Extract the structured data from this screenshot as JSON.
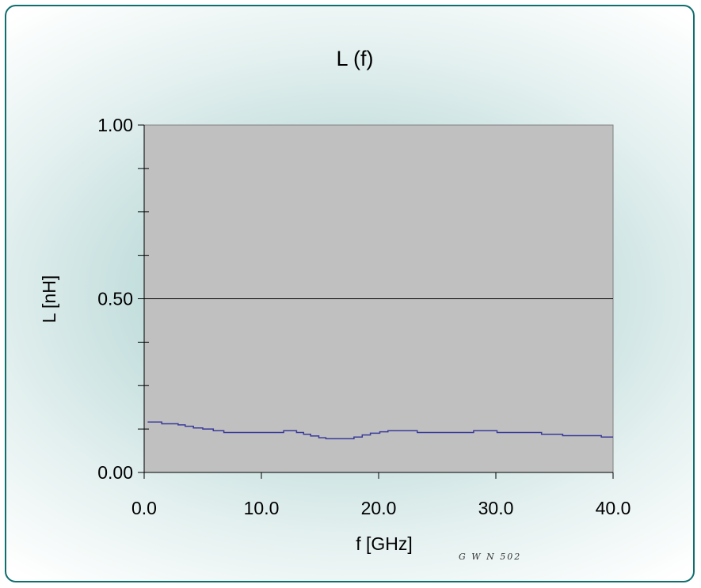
{
  "chart_data": {
    "type": "line",
    "title": "L (f)",
    "xlabel": "f [GHz]",
    "ylabel": "L [nH]",
    "xlim": [
      0.0,
      40.0
    ],
    "ylim": [
      0.0,
      1.0
    ],
    "x_ticks": [
      "0.0",
      "10.0",
      "20.0",
      "30.0",
      "40.0"
    ],
    "y_ticks": [
      "0.00",
      "0.50",
      "1.00"
    ],
    "grid": "horizontal major at 0.50",
    "legend": "none",
    "plot_background": "#c0c0c0",
    "line_color": "#3a3a9a",
    "series": [
      {
        "x": [
          0.3,
          1.5,
          2.9,
          3.5,
          4.2,
          5.0,
          5.9,
          6.8,
          9.0,
          11.2,
          11.9,
          13.0,
          13.6,
          14.2,
          14.9,
          15.5,
          17.2,
          17.9,
          18.6,
          19.3,
          20.1,
          20.8,
          23.3,
          25.0,
          27.0,
          28.1,
          29.0,
          30.1,
          31.8,
          33.9,
          35.7,
          38.2,
          39.0,
          40.0
        ],
        "y": [
          0.145,
          0.14,
          0.137,
          0.133,
          0.128,
          0.125,
          0.12,
          0.115,
          0.115,
          0.115,
          0.12,
          0.115,
          0.11,
          0.105,
          0.1,
          0.097,
          0.097,
          0.102,
          0.108,
          0.113,
          0.117,
          0.12,
          0.115,
          0.115,
          0.115,
          0.12,
          0.12,
          0.115,
          0.115,
          0.11,
          0.106,
          0.106,
          0.102,
          0.102
        ]
      }
    ]
  },
  "watermark": "G W N  502"
}
